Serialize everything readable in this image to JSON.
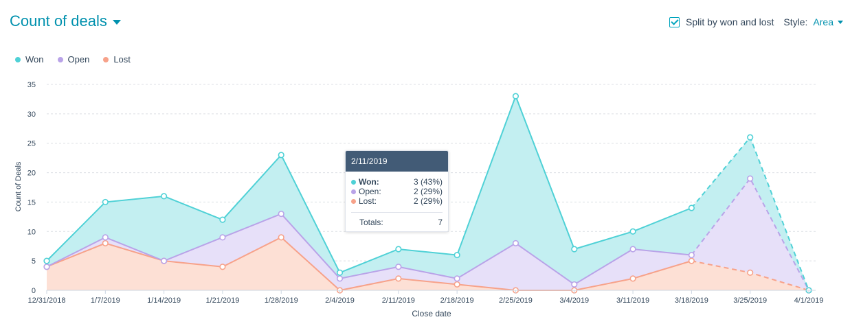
{
  "header": {
    "title": "Count of deals",
    "split_label": "Split by won and lost",
    "style_label": "Style:",
    "style_value": "Area"
  },
  "colors": {
    "won": "#4fd1d6",
    "open": "#b9a3e8",
    "lost": "#f7a28a",
    "won_fill": "#c3eff1",
    "open_fill": "#e7e0f9",
    "lost_fill": "#fde0d5",
    "tooltip_header": "#425b76"
  },
  "legend": [
    {
      "name": "Won",
      "color": "#4fd1d6"
    },
    {
      "name": "Open",
      "color": "#b9a3e8"
    },
    {
      "name": "Lost",
      "color": "#f7a28a"
    }
  ],
  "tooltip": {
    "date": "2/11/2019",
    "rows": [
      {
        "label": "Won:",
        "value": "3 (43%)",
        "color": "#4fd1d6"
      },
      {
        "label": "Open:",
        "value": "2 (29%)",
        "color": "#b9a3e8"
      },
      {
        "label": "Lost:",
        "value": "2 (29%)",
        "color": "#f7a28a"
      }
    ],
    "totals_label": "Totals:",
    "totals_value": "7"
  },
  "chart_data": {
    "type": "area",
    "stacked": true,
    "categories": [
      "12/31/2018",
      "1/7/2019",
      "1/14/2019",
      "1/21/2019",
      "1/28/2019",
      "2/4/2019",
      "2/11/2019",
      "2/18/2019",
      "2/25/2019",
      "3/4/2019",
      "3/11/2019",
      "3/18/2019",
      "3/25/2019",
      "4/1/2019"
    ],
    "series": [
      {
        "name": "Lost",
        "values": [
          4,
          8,
          5,
          4,
          9,
          0,
          2,
          1,
          0,
          0,
          2,
          5,
          3,
          0
        ]
      },
      {
        "name": "Open",
        "values": [
          0,
          1,
          0,
          5,
          4,
          2,
          2,
          1,
          8,
          1,
          5,
          1,
          16,
          0
        ]
      },
      {
        "name": "Won",
        "values": [
          1,
          6,
          11,
          3,
          10,
          1,
          3,
          4,
          25,
          6,
          3,
          8,
          7,
          0
        ]
      }
    ],
    "cumulative_totals": {
      "lost": [
        4,
        8,
        5,
        4,
        9,
        0,
        2,
        1,
        0,
        0,
        2,
        5,
        3,
        0
      ],
      "open": [
        4,
        9,
        5,
        9,
        13,
        2,
        4,
        2,
        8,
        1,
        7,
        6,
        19,
        0
      ],
      "won": [
        5,
        15,
        16,
        12,
        23,
        3,
        7,
        6,
        33,
        7,
        10,
        14,
        26,
        0
      ]
    },
    "dashed_from_index": 11,
    "xlabel": "Close date",
    "ylabel": "Count of Deals",
    "ylim": [
      0,
      35
    ],
    "yticks": [
      0,
      5,
      10,
      15,
      20,
      25,
      30,
      35
    ],
    "grid": true,
    "legend_position": "top-left"
  }
}
